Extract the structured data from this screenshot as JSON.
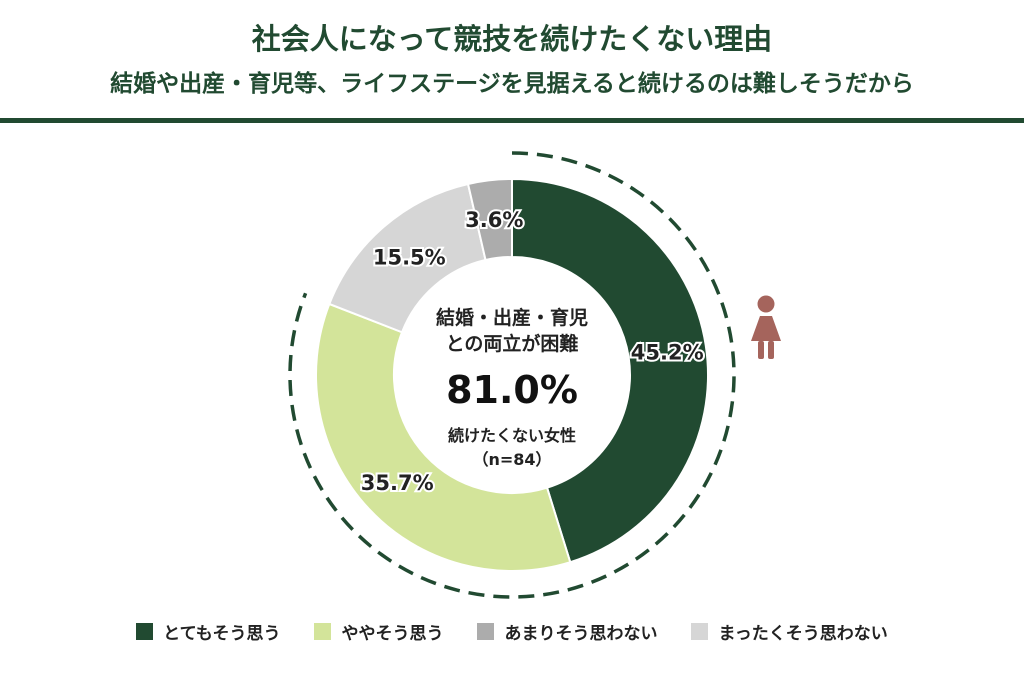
{
  "title": "社会人になって競技を続けたくない理由",
  "subtitle": "結婚や出産・育児等、ライフステージを見据えると続けるのは難しそうだから",
  "center": {
    "line1": "結婚・出産・育児",
    "line2": "との両立が困難",
    "value": "81.0%",
    "line3": "続けたくない女性",
    "line4": "（n=84）"
  },
  "chart_data": {
    "type": "pie",
    "title": "社会人になって競技を続けたくない理由",
    "subtitle": "結婚や出産・育児等、ライフステージを見据えると続けるのは難しそうだから",
    "categories": [
      "とてもそう思う",
      "ややそう思う",
      "あまりそう思わない",
      "まったくそう思わない"
    ],
    "values": [
      45.2,
      35.7,
      3.6,
      15.5
    ],
    "labels": [
      "45.2%",
      "35.7%",
      "3.6%",
      "15.5%"
    ],
    "colors": [
      "#214a31",
      "#d3e49a",
      "#acacac",
      "#d6d6d6"
    ],
    "order_clockwise_from_top": [
      0,
      1,
      3,
      2
    ],
    "legend_position": "bottom",
    "highlight": {
      "value": 81.0,
      "label": "81.0%",
      "covers": [
        "とてもそう思う",
        "ややそう思う"
      ]
    },
    "n": 84
  },
  "icons": {
    "figure": "female-person-icon"
  },
  "colors": {
    "accent": "#214a31",
    "figure": "#a5645c"
  }
}
